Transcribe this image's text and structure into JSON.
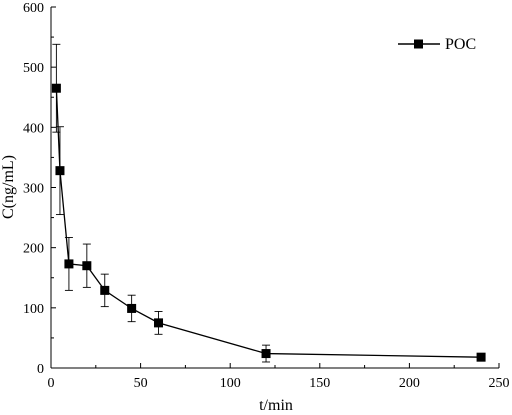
{
  "chart_data": {
    "type": "line",
    "xlabel": "t/min",
    "ylabel": "C(ng/mL)",
    "xlim": [
      0,
      250
    ],
    "ylim": [
      0,
      600
    ],
    "xticks": [
      "0",
      "50",
      "100",
      "150",
      "200",
      "250"
    ],
    "yticks": [
      "0",
      "100",
      "200",
      "300",
      "400",
      "500",
      "600"
    ],
    "xtick_values": [
      0,
      50,
      100,
      150,
      200,
      250
    ],
    "ytick_values": [
      0,
      100,
      200,
      300,
      400,
      500,
      600
    ],
    "grid": false,
    "legend_position": "top-right",
    "series": [
      {
        "name": "POC",
        "marker": "square",
        "color": "#000000",
        "x": [
          3,
          5,
          10,
          20,
          30,
          45,
          60,
          120,
          240
        ],
        "y": [
          465,
          328,
          173,
          170,
          129,
          99,
          75,
          24,
          18
        ],
        "error": [
          73,
          73,
          44,
          36,
          27,
          22,
          19,
          14,
          0
        ]
      }
    ]
  }
}
